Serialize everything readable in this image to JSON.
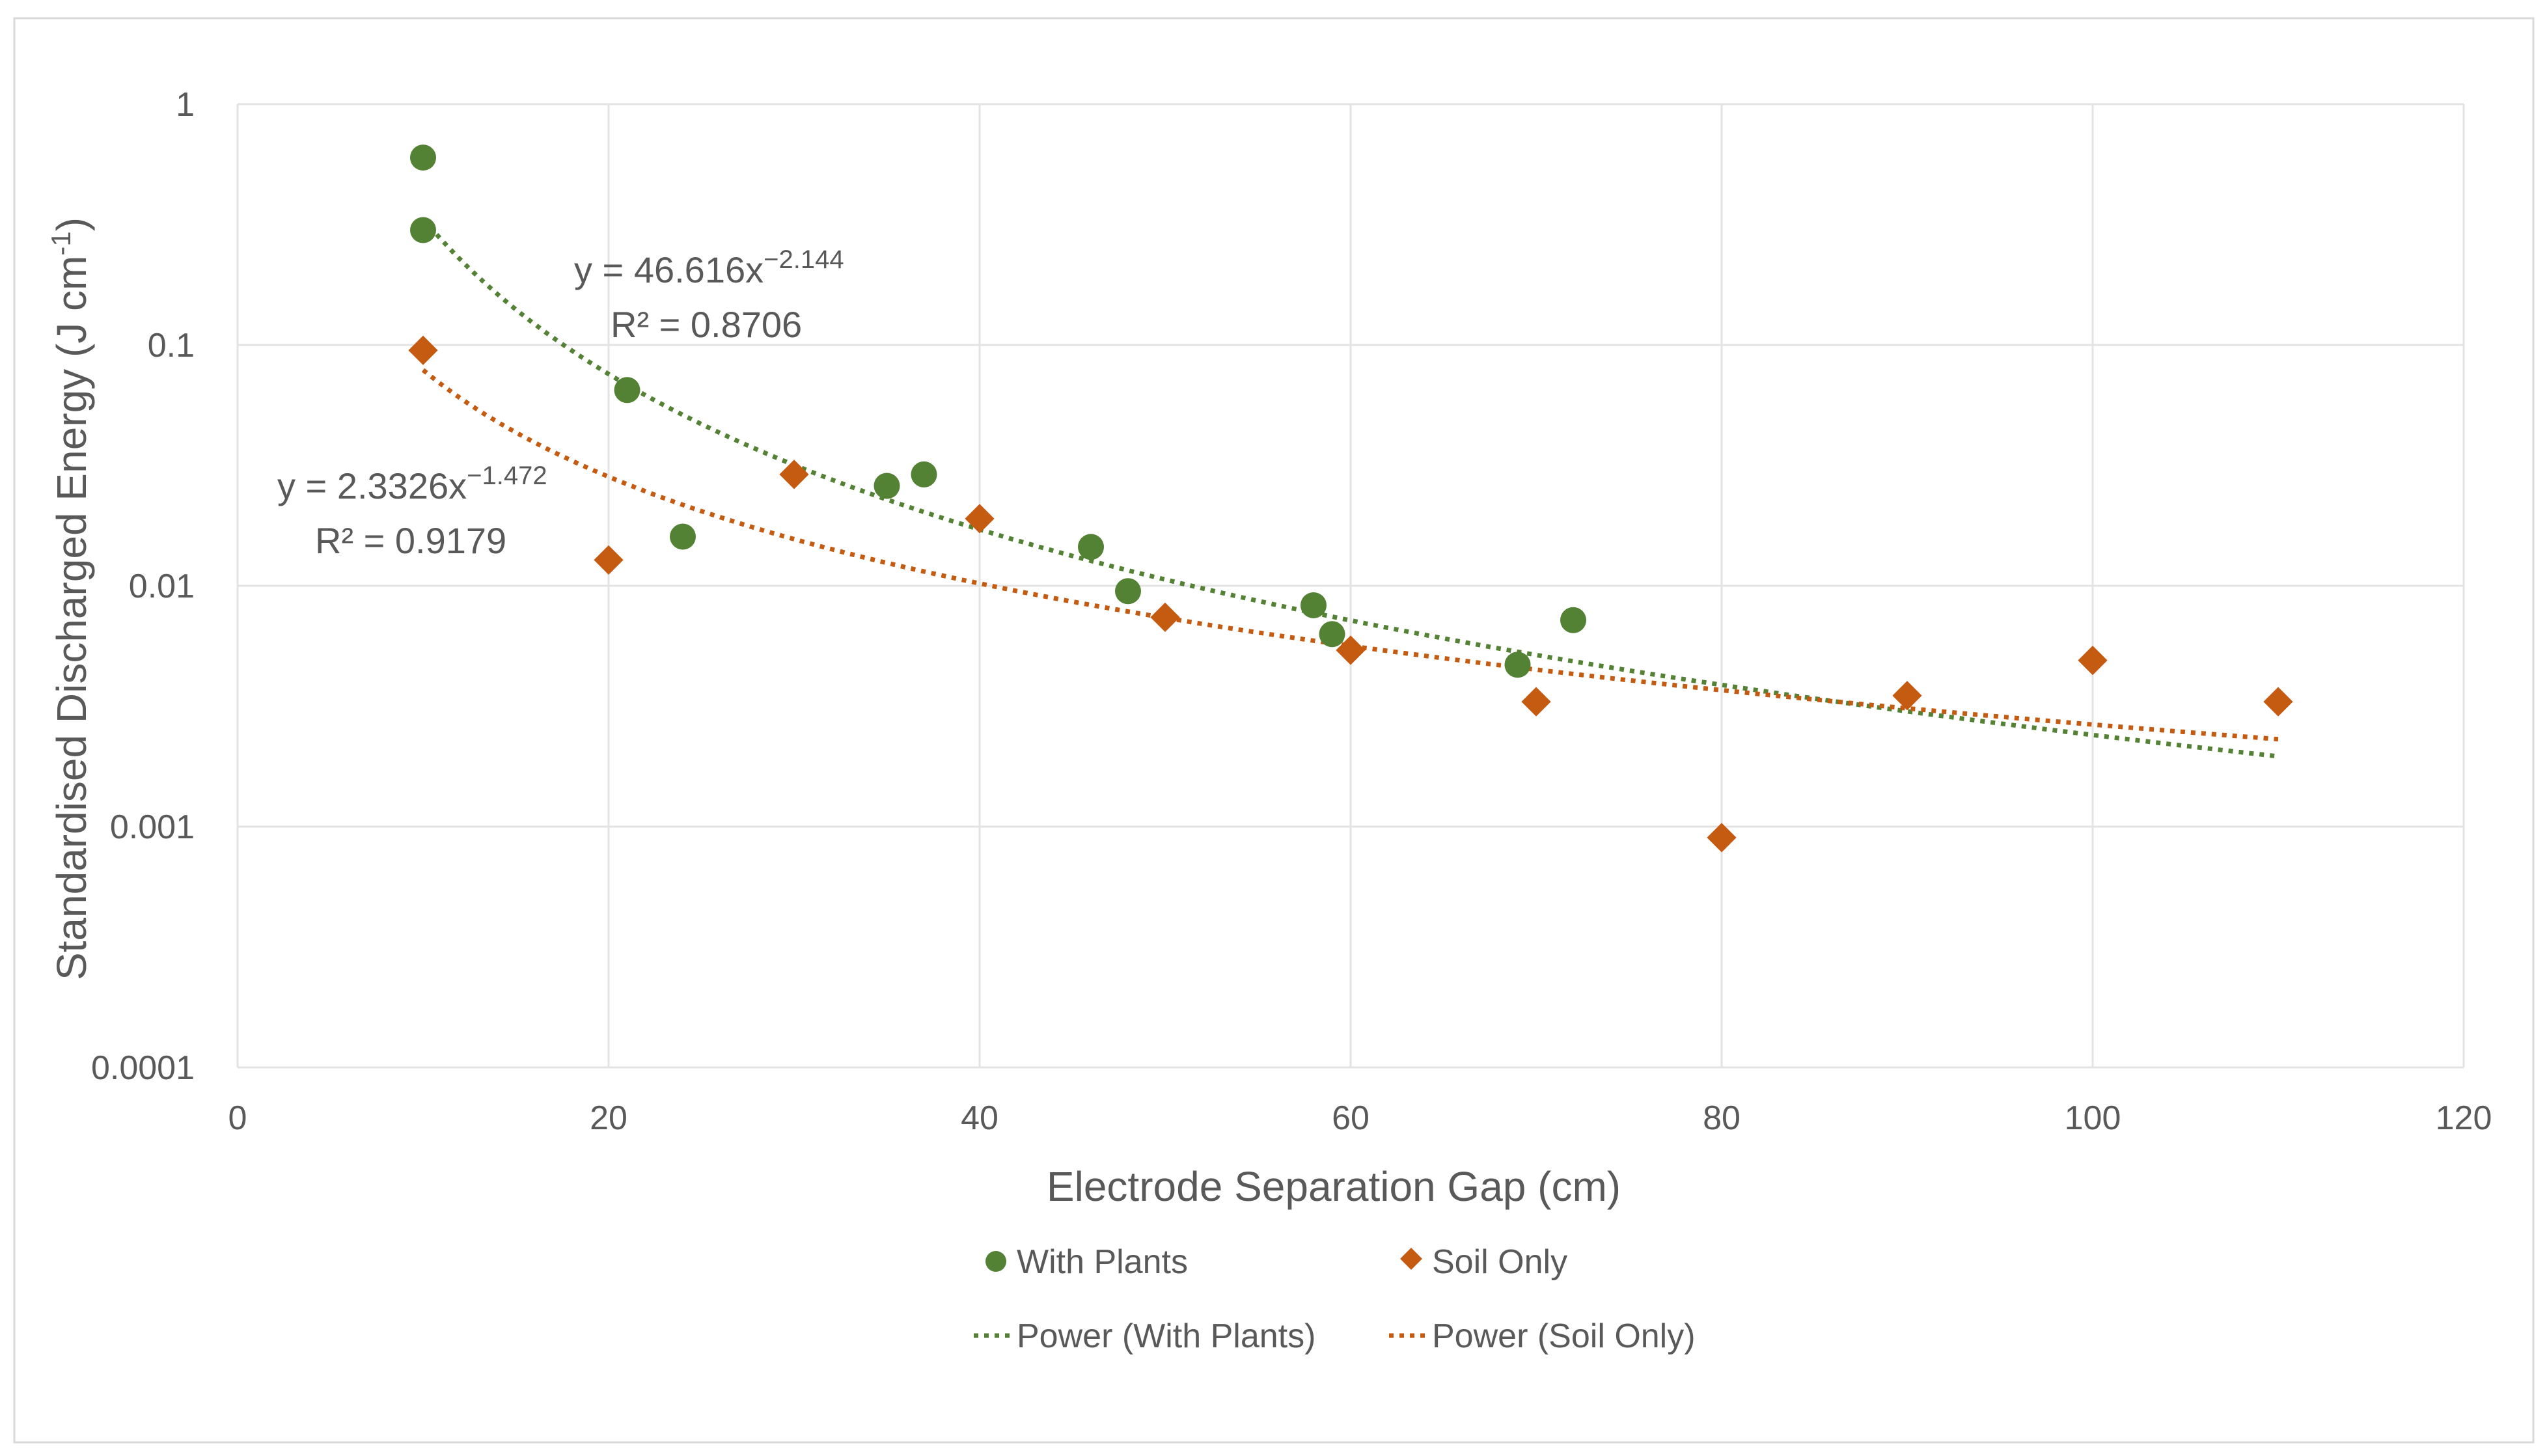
{
  "chart_data": {
    "type": "scatter",
    "title": "",
    "xlabel": "Electrode Separation Gap (cm)",
    "ylabel_main": "Standardised Discharged Energy (J cm",
    "ylabel_sup": "-1",
    "ylabel_close": ")",
    "xlim": [
      0,
      120
    ],
    "ylim": [
      0.0001,
      1
    ],
    "yscale": "log",
    "x_ticks": [
      0,
      20,
      40,
      60,
      80,
      100,
      120
    ],
    "x_tick_labels": [
      "0",
      "20",
      "40",
      "60",
      "80",
      "100",
      "120"
    ],
    "y_ticks": [
      1,
      0.1,
      0.01,
      0.001,
      0.0001
    ],
    "y_tick_labels": [
      "1",
      "0.1",
      "0.01",
      "0.001",
      "0.0001"
    ],
    "grid": true,
    "series": [
      {
        "name": "With Plants",
        "marker": "circle",
        "color": "#548235",
        "x": [
          10,
          10,
          21,
          24,
          35,
          37,
          46,
          48,
          58,
          59,
          69,
          72
        ],
        "y": [
          0.6,
          0.3,
          0.065,
          0.016,
          0.026,
          0.029,
          0.0145,
          0.0095,
          0.0083,
          0.0063,
          0.0047,
          0.0072
        ]
      },
      {
        "name": "Soil Only",
        "marker": "diamond",
        "color": "#c55a11",
        "x": [
          10,
          20,
          30,
          40,
          50,
          60,
          70,
          80,
          90,
          100,
          110
        ],
        "y": [
          0.095,
          0.0128,
          0.029,
          0.019,
          0.0074,
          0.0054,
          0.0033,
          0.0009,
          0.0035,
          0.0049,
          0.0033
        ]
      }
    ],
    "trendlines": [
      {
        "name": "Power (With Plants)",
        "type": "power",
        "a": 46.616,
        "b": -2.144,
        "x_range": [
          10,
          110
        ],
        "color": "#548235",
        "eq_main": "y = 46.616x",
        "eq_exp": "−2.144",
        "r2_label": "R² = 0.8706"
      },
      {
        "name": "Power (Soil Only)",
        "type": "power",
        "a": 2.3326,
        "b": -1.472,
        "x_range": [
          10,
          110
        ],
        "color": "#c55a11",
        "eq_main": "y = 2.3326x",
        "eq_exp": "−1.472",
        "r2_label": "R² = 0.9179"
      }
    ],
    "legend": {
      "placement": "bottom",
      "items": [
        "With Plants",
        "Soil Only",
        "Power (With Plants)",
        "Power (Soil Only)"
      ]
    }
  }
}
